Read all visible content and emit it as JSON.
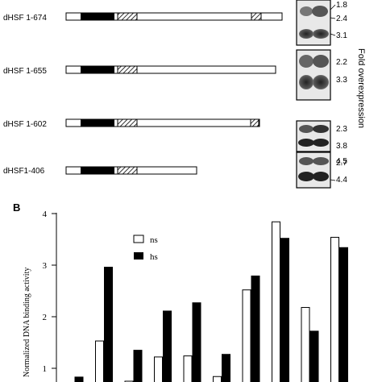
{
  "figure": {
    "panel_b_label": "B",
    "side_label": "Fold overexpression",
    "constructs": [
      {
        "label": "dHSF 1-674",
        "folds": [
          "1.8",
          "2.4",
          "3.1"
        ]
      },
      {
        "label": "dHSF 1-655",
        "folds": [
          "2.2",
          "3.3"
        ]
      },
      {
        "label": "dHSF 1-602",
        "folds": [
          "2.3",
          "3.8",
          "4.5"
        ]
      },
      {
        "label": "dHSF1-406",
        "folds": [
          "2.7",
          "4.4"
        ]
      }
    ]
  },
  "chart_data": {
    "type": "bar",
    "ylabel": "Normalized DNA binding activity",
    "xlabel": "",
    "ylim": [
      0.7,
      4
    ],
    "yticks": [
      "1",
      "2",
      "3",
      "4"
    ],
    "legend_placement": "top-center",
    "colors": {
      "ns": "#ffffff",
      "hs": "#000000"
    },
    "series": [
      {
        "name": "ns",
        "values": [
          0.7,
          1.53,
          0.75,
          1.22,
          1.24,
          0.84,
          2.52,
          3.84,
          2.18,
          3.54
        ]
      },
      {
        "name": "hs",
        "values": [
          0.83,
          2.96,
          1.35,
          2.11,
          2.27,
          1.27,
          2.79,
          3.52,
          1.72,
          3.34
        ]
      }
    ]
  }
}
